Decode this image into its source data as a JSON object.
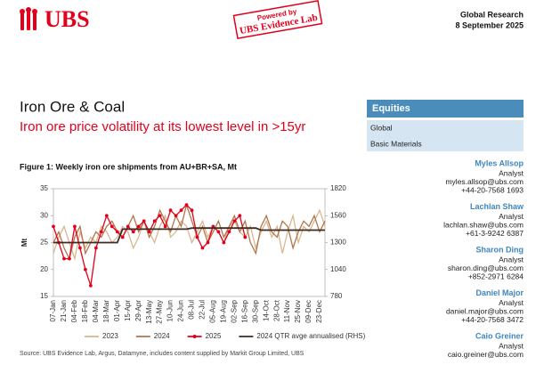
{
  "header": {
    "logo": "UBS",
    "stamp_top": "Powered by",
    "stamp_bottom": "UBS Evidence Lab",
    "division": "Global Research",
    "date": "8 September 2025"
  },
  "title": "Iron Ore & Coal",
  "subtitle": "Iron ore price volatility at its lowest level in >15yr",
  "sidebar": {
    "heading": "Equities",
    "region": "Global",
    "sector": "Basic Materials"
  },
  "analysts": [
    {
      "name": "Myles Allsop",
      "role": "Analyst",
      "email": "myles.allsop@ubs.com",
      "phone": "+44-20-7568 1693"
    },
    {
      "name": "Lachlan Shaw",
      "role": "Analyst",
      "email": "lachlan.shaw@ubs.com",
      "phone": "+61-3-9242 6387"
    },
    {
      "name": "Sharon Ding",
      "role": "Analyst",
      "email": "sharon.ding@ubs.com",
      "phone": "+852-2971 6284"
    },
    {
      "name": "Daniel Major",
      "role": "Analyst",
      "email": "daniel.major@ubs.com",
      "phone": "+44-20-7568 3472"
    },
    {
      "name": "Caio Greiner",
      "role": "Analyst",
      "email": "caio.greiner@ubs.com"
    }
  ],
  "chart_data": {
    "type": "line",
    "title": "Figure 1: Weekly iron ore shipments from AU+BR+SA, Mt",
    "ylabel": "Mt",
    "categories": [
      "07-Jan",
      null,
      "21-Jan",
      null,
      "04-Feb",
      null,
      "18-Feb",
      null,
      "04-Mar",
      null,
      "18-Mar",
      null,
      "01-Apr",
      null,
      "15-Apr",
      null,
      "29-Apr",
      null,
      "13-May",
      null,
      "27-May",
      null,
      "10-Jun",
      null,
      "24-Jun",
      null,
      "08-Jul",
      null,
      "22-Jul",
      null,
      "05-Aug",
      null,
      "19-Aug",
      null,
      "02-Sep",
      null,
      "16-Sep",
      null,
      "30-Sep",
      null,
      "14-Oct",
      null,
      "28-Oct",
      null,
      "11-Nov",
      null,
      "25-Nov",
      null,
      "09-Dec",
      null,
      "23-Dec",
      null
    ],
    "ylim": [
      15,
      35
    ],
    "yticks": [
      15,
      20,
      25,
      30,
      35
    ],
    "y2lim": [
      780,
      1820
    ],
    "y2ticks": [
      780,
      1040,
      1300,
      1560,
      1820
    ],
    "series": [
      {
        "name": "2023",
        "color": "#d8b88e",
        "values": [
          23,
          26,
          28,
          25,
          22,
          27,
          24,
          26,
          25,
          28,
          27,
          25,
          26,
          28,
          27,
          24,
          26,
          29,
          27,
          25,
          28,
          30,
          26,
          27,
          29,
          28,
          25,
          27,
          29,
          26,
          28,
          27,
          25,
          28,
          29,
          27,
          26,
          28,
          24,
          27,
          29,
          26,
          28,
          23,
          27,
          30,
          25,
          28,
          27,
          29,
          31,
          28
        ]
      },
      {
        "name": "2024",
        "color": "#b3754f",
        "values": [
          25,
          27,
          24,
          22,
          26,
          28,
          23,
          25,
          27,
          26,
          28,
          29,
          27,
          26,
          28,
          30,
          27,
          29,
          26,
          28,
          31,
          29,
          27,
          30,
          28,
          32,
          29,
          26,
          28,
          25,
          27,
          29,
          26,
          28,
          30,
          27,
          29,
          25,
          23,
          28,
          30,
          27,
          26,
          29,
          28,
          24,
          27,
          29,
          28,
          30,
          27,
          29
        ]
      },
      {
        "name": "2025",
        "color": "#e3001b",
        "markers": true,
        "values": [
          28,
          25,
          22,
          22,
          28,
          24,
          20,
          17,
          24,
          27,
          30,
          28,
          27,
          26,
          28,
          27,
          28,
          29,
          27,
          29,
          30,
          28,
          31,
          30,
          31,
          32,
          31,
          26,
          24,
          25,
          28,
          27,
          25,
          27,
          29,
          30,
          26,
          null,
          null,
          null,
          null,
          null,
          null,
          null,
          null,
          null,
          null,
          null,
          null,
          null,
          null,
          null
        ]
      },
      {
        "name": "2024 QTR avge annualised (RHS)",
        "color": "#3b2b22",
        "axis": "y2",
        "values": [
          1300,
          1300,
          1300,
          1300,
          1300,
          1300,
          1300,
          1300,
          1300,
          1300,
          1300,
          1300,
          1300,
          1430,
          1430,
          1430,
          1430,
          1430,
          1430,
          1430,
          1430,
          1430,
          1430,
          1430,
          1430,
          1430,
          1440,
          1440,
          1440,
          1440,
          1440,
          1440,
          1440,
          1440,
          1440,
          1440,
          1440,
          1440,
          1440,
          1420,
          1420,
          1420,
          1420,
          1420,
          1420,
          1420,
          1420,
          1420,
          1420,
          1420,
          1420,
          1420
        ]
      }
    ]
  },
  "source": "Source: UBS Evidence Lab, Argus, Datamyne, includes content supplied by Markit Group Limited, UBS"
}
